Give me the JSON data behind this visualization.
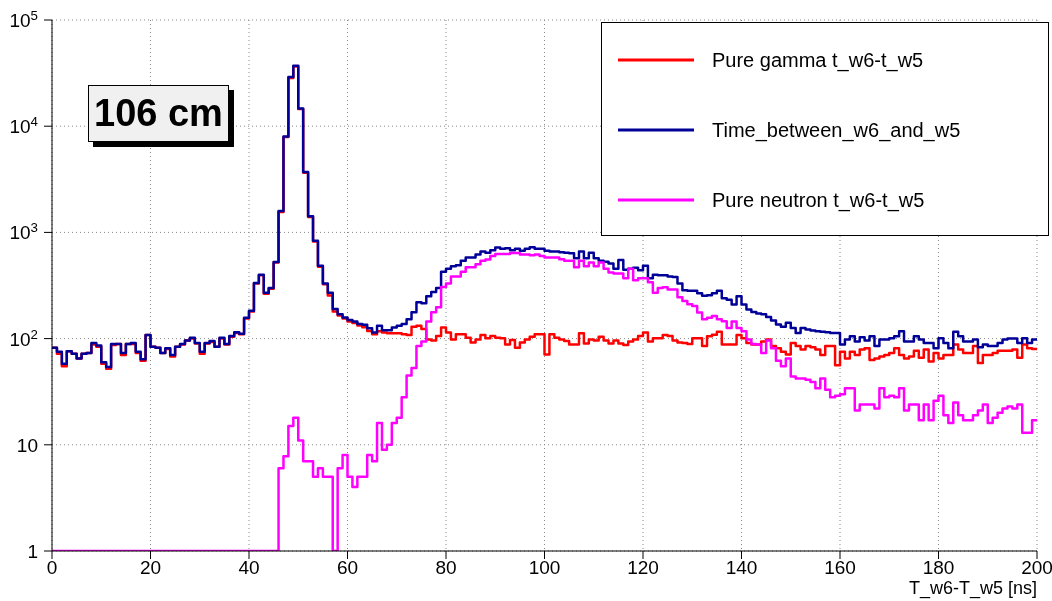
{
  "chart_data": {
    "type": "histogram",
    "xlabel": "T_w6-T_w5 [ns]",
    "annotations": [
      "106 cm"
    ],
    "bins": [
      0,
      1,
      2,
      3,
      4,
      5,
      6,
      7,
      8,
      9,
      10,
      11,
      12,
      13,
      14,
      15,
      16,
      17,
      18,
      19,
      20,
      21,
      22,
      23,
      24,
      25,
      26,
      27,
      28,
      29,
      30,
      31,
      32,
      33,
      34,
      35,
      36,
      37,
      38,
      39,
      40,
      41,
      42,
      43,
      44,
      45,
      46,
      47,
      48,
      49,
      50,
      51,
      52,
      53,
      54,
      55,
      56,
      57,
      58,
      59,
      60,
      61,
      62,
      63,
      64,
      65,
      66,
      67,
      68,
      69,
      70,
      71,
      72,
      73,
      74,
      75,
      76,
      77,
      78,
      79,
      80,
      81,
      82,
      83,
      84,
      85,
      86,
      87,
      88,
      89,
      90,
      91,
      92,
      93,
      94,
      95,
      96,
      97,
      98,
      99,
      100,
      101,
      102,
      103,
      104,
      105,
      106,
      107,
      108,
      109,
      110,
      111,
      112,
      113,
      114,
      115,
      116,
      117,
      118,
      119,
      120,
      121,
      122,
      123,
      124,
      125,
      126,
      127,
      128,
      129,
      130,
      131,
      132,
      133,
      134,
      135,
      136,
      137,
      138,
      139,
      140,
      141,
      142,
      143,
      144,
      145,
      146,
      147,
      148,
      149,
      150,
      151,
      152,
      153,
      154,
      155,
      156,
      157,
      158,
      159,
      160,
      161,
      162,
      163,
      164,
      165,
      166,
      167,
      168,
      169,
      170,
      171,
      172,
      173,
      174,
      175,
      176,
      177,
      178,
      179,
      180,
      181,
      182,
      183,
      184,
      185,
      186,
      187,
      188,
      189,
      190,
      191,
      192,
      193,
      194,
      195,
      196,
      197,
      198,
      199,
      200
    ],
    "series": [
      {
        "name": "Pure gamma t_w6-t_w5",
        "color": "#ff0000",
        "values": [
          82,
          72,
          55,
          76,
          72,
          65,
          72,
          73,
          88,
          84,
          58,
          52,
          87,
          89,
          70,
          89,
          89,
          73,
          62,
          108,
          84,
          82,
          73,
          80,
          68,
          84,
          88,
          96,
          100,
          90,
          72,
          90,
          93,
          84,
          100,
          88,
          104,
          113,
          110,
          155,
          180,
          330,
          395,
          265,
          295,
          520,
          1560,
          7900,
          28500,
          36500,
          14500,
          3650,
          1400,
          820,
          475,
          325,
          255,
          180,
          165,
          155,
          145,
          140,
          133,
          128,
          118,
          110,
          117,
          114,
          112,
          112,
          112,
          110,
          108,
          129,
          132,
          123,
          98,
          96,
          106,
          127,
          114,
          98,
          110,
          110,
          102,
          92,
          98,
          108,
          101,
          106,
          102,
          101,
          88,
          97,
          82,
          92,
          98,
          104,
          110,
          110,
          71,
          110,
          102,
          98,
          95,
          88,
          88,
          112,
          90,
          98,
          96,
          104,
          96,
          90,
          96,
          90,
          87,
          94,
          98,
          106,
          114,
          94,
          101,
          101,
          108,
          106,
          96,
          92,
          91,
          89,
          101,
          101,
          85,
          105,
          109,
          116,
          88,
          88,
          88,
          108,
          101,
          91,
          88,
          88,
          94,
          98,
          85,
          81,
          75,
          71,
          91,
          85,
          79,
          85,
          83,
          79,
          70,
          85,
          85,
          56,
          75,
          65,
          75,
          70,
          79,
          81,
          63,
          65,
          68,
          70,
          73,
          81,
          70,
          65,
          68,
          77,
          66,
          79,
          61,
          73,
          65,
          70,
          70,
          88,
          79,
          73,
          73,
          85,
          59,
          70,
          70,
          73,
          77,
          77,
          77,
          79,
          66,
          88,
          81,
          80
        ]
      },
      {
        "name": "Time_between_w6_and_w5",
        "color": "#000099",
        "values": [
          82,
          75,
          58,
          76,
          72,
          65,
          72,
          73,
          91,
          86,
          60,
          54,
          89,
          89,
          73,
          89,
          91,
          75,
          64,
          108,
          84,
          82,
          73,
          81,
          70,
          84,
          89,
          96,
          102,
          91,
          75,
          91,
          95,
          84,
          102,
          89,
          106,
          115,
          111,
          157,
          183,
          333,
          400,
          270,
          300,
          525,
          1590,
          8000,
          29000,
          37000,
          14700,
          3700,
          1420,
          835,
          485,
          330,
          270,
          190,
          170,
          158,
          150,
          145,
          137,
          135,
          125,
          114,
          132,
          120,
          120,
          127,
          132,
          137,
          152,
          177,
          220,
          215,
          250,
          275,
          300,
          425,
          455,
          480,
          490,
          540,
          580,
          580,
          620,
          660,
          645,
          680,
          720,
          700,
          710,
          680,
          700,
          670,
          700,
          725,
          700,
          700,
          670,
          660,
          660,
          650,
          645,
          635,
          570,
          660,
          570,
          645,
          570,
          540,
          530,
          510,
          455,
          550,
          445,
          455,
          465,
          440,
          485,
          370,
          400,
          395,
          395,
          385,
          380,
          330,
          286,
          282,
          282,
          268,
          253,
          256,
          268,
          282,
          240,
          232,
          210,
          250,
          210,
          188,
          178,
          172,
          170,
          160,
          148,
          136,
          129,
          141,
          126,
          113,
          126,
          122,
          119,
          117,
          116,
          115,
          113,
          113,
          88,
          98,
          105,
          94,
          103,
          96,
          105,
          85,
          98,
          98,
          101,
          105,
          117,
          94,
          94,
          105,
          98,
          91,
          91,
          81,
          101,
          91,
          81,
          116,
          105,
          94,
          94,
          98,
          83,
          88,
          85,
          85,
          91,
          98,
          100,
          100,
          91,
          101,
          91,
          98
        ]
      },
      {
        "name": "Pure neutron t_w6-t_w5",
        "color": "#ff00ff",
        "values": [
          1,
          1,
          1,
          1,
          1,
          1,
          1,
          1,
          1,
          1,
          1,
          1,
          1,
          1,
          1,
          1,
          1,
          1,
          1,
          1,
          1,
          1,
          1,
          1,
          1,
          1,
          1,
          1,
          1,
          1,
          1,
          1,
          1,
          1,
          1,
          1,
          1,
          1,
          1,
          1,
          1,
          1,
          1,
          1,
          1,
          1,
          6,
          7.8,
          15,
          18,
          11,
          7,
          7,
          5,
          6,
          5,
          5,
          1,
          6,
          8,
          5,
          4,
          5,
          5,
          8,
          7,
          16,
          9,
          10,
          16,
          18,
          28,
          45,
          53,
          85,
          94,
          145,
          177,
          197,
          306,
          330,
          385,
          385,
          425,
          470,
          470,
          500,
          540,
          555,
          600,
          625,
          625,
          625,
          640,
          640,
          620,
          620,
          610,
          620,
          600,
          580,
          580,
          580,
          560,
          540,
          540,
          470,
          540,
          480,
          520,
          480,
          520,
          455,
          420,
          410,
          410,
          370,
          455,
          355,
          370,
          370,
          340,
          270,
          300,
          305,
          290,
          290,
          245,
          226,
          211,
          203,
          176,
          152,
          157,
          163,
          152,
          146,
          126,
          145,
          126,
          117,
          98,
          89,
          88,
          73,
          96,
          81,
          62,
          55,
          65,
          44,
          42,
          42,
          41,
          39,
          34,
          42,
          33,
          28,
          29,
          30,
          34,
          34,
          21,
          24,
          24,
          24,
          22,
          34,
          28,
          29,
          28,
          34,
          21,
          24,
          24,
          17,
          24,
          17,
          26,
          29,
          19,
          16,
          25,
          19,
          17,
          17,
          19,
          21,
          24,
          16,
          18,
          20,
          22,
          23,
          22,
          24,
          13,
          13,
          17
        ]
      }
    ],
    "xlim": [
      0,
      200
    ],
    "xticks": [
      0,
      20,
      40,
      60,
      80,
      100,
      120,
      140,
      160,
      180,
      200
    ],
    "log": "y",
    "ylim": [
      1,
      100000
    ],
    "yticks": [
      1,
      10,
      {
        "value": 100,
        "label": "10$^{2}$"
      },
      {
        "value": 1000,
        "label": "10$^{3}$"
      },
      {
        "value": 10000,
        "label": "10$^{4}$"
      },
      {
        "value": 100000,
        "label": "10$^{5}$"
      }
    ],
    "grid": true,
    "legend": "top right"
  }
}
